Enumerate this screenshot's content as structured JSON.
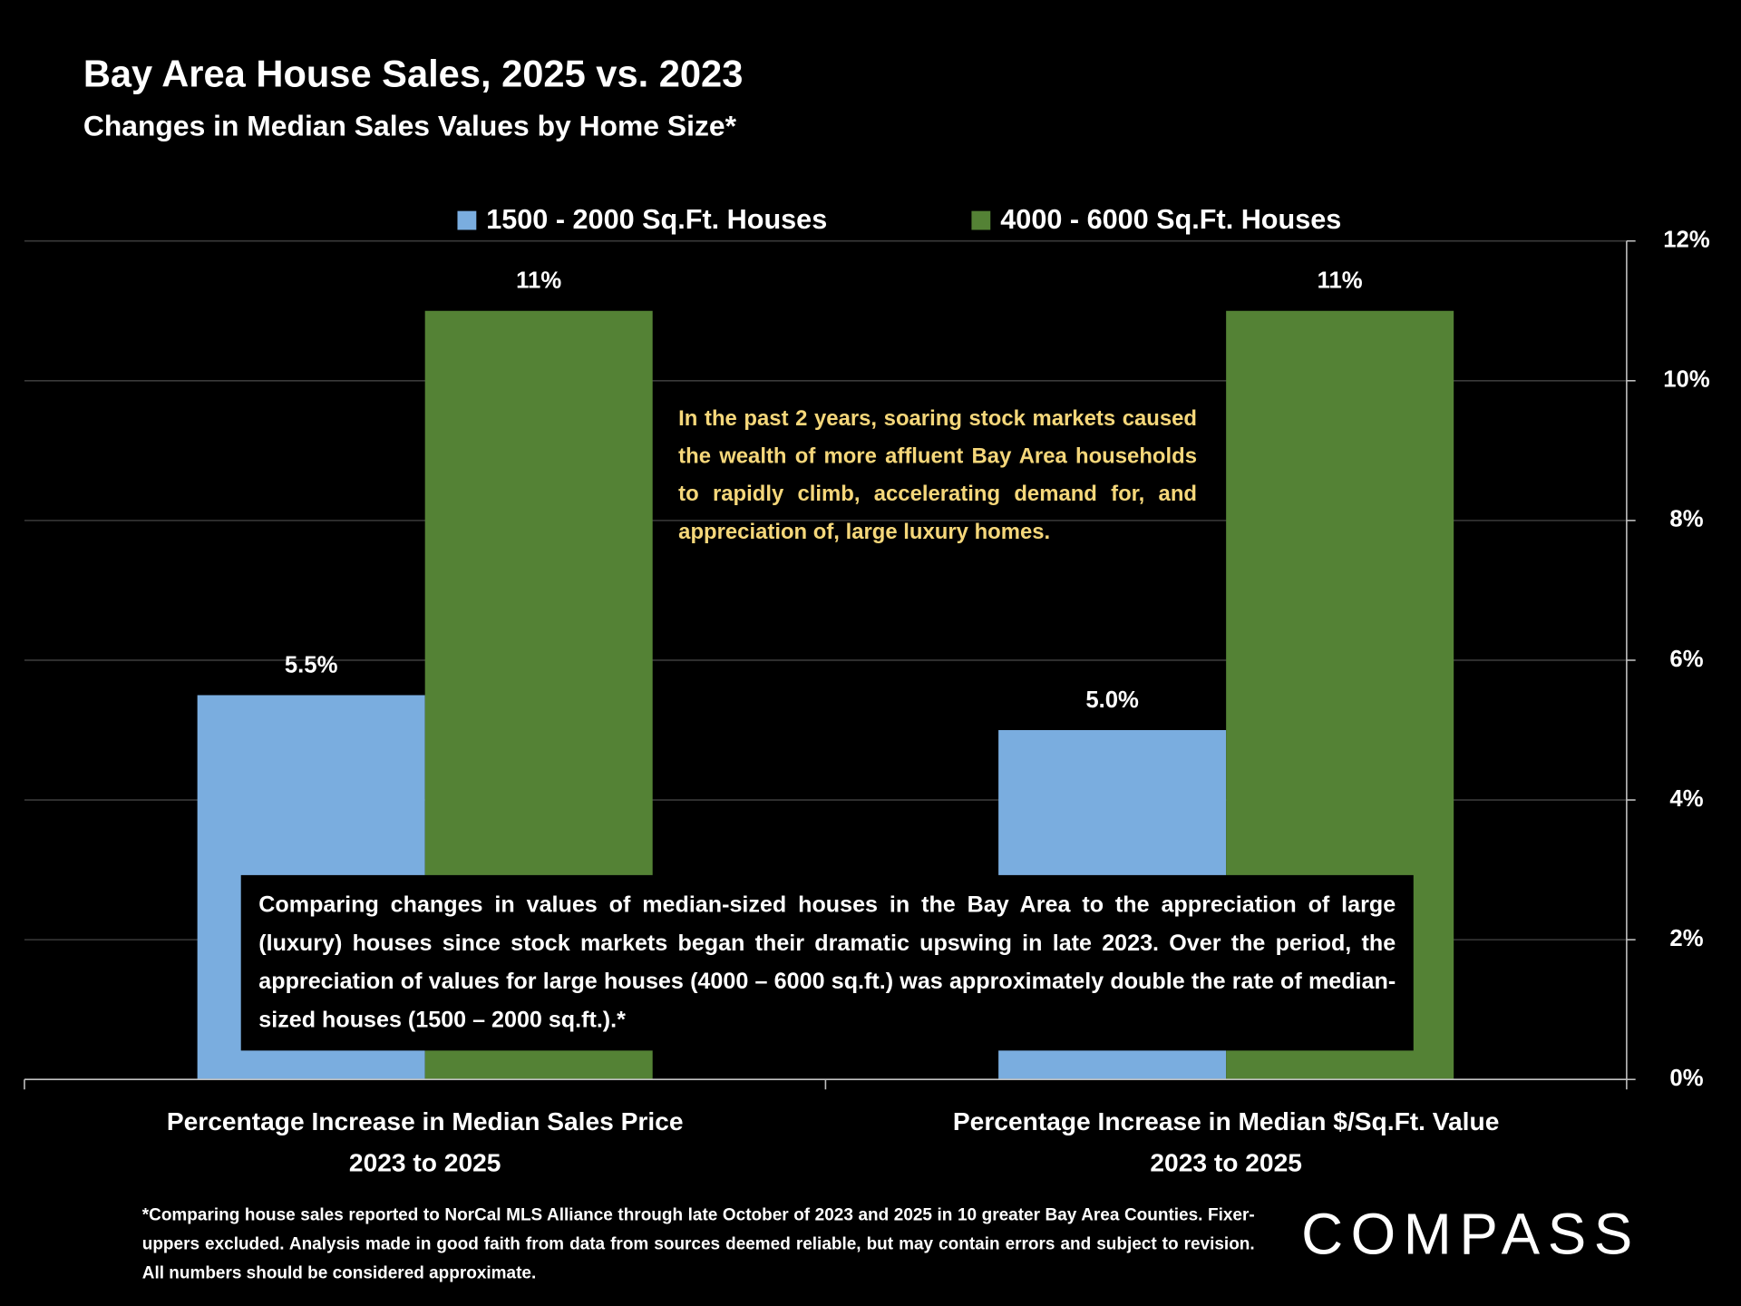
{
  "chart_data": {
    "type": "bar",
    "title": "Bay Area House Sales, 2025 vs. 2023",
    "subtitle": "Changes in Median Sales Values by Home Size*",
    "categories": [
      [
        "Percentage Increase in Median Sales Price",
        "2023 to 2025"
      ],
      [
        "Percentage Increase in Median $/Sq.Ft. Value",
        "2023 to 2025"
      ]
    ],
    "series": [
      {
        "name": "1500 - 2000 Sq.Ft. Houses",
        "color": "#7aaddf",
        "values": [
          5.5,
          5.0
        ],
        "value_labels": [
          "5.5%",
          "5.0%"
        ]
      },
      {
        "name": "4000 - 6000 Sq.Ft. Houses",
        "color": "#548235",
        "values": [
          11,
          11
        ],
        "value_labels": [
          "11%",
          "11%"
        ]
      }
    ],
    "ylim": [
      0,
      12
    ],
    "yticks": [
      {
        "value": 0,
        "label": "0%"
      },
      {
        "value": 2,
        "label": "2%"
      },
      {
        "value": 4,
        "label": "4%"
      },
      {
        "value": 6,
        "label": "6%"
      },
      {
        "value": 8,
        "label": "8%"
      },
      {
        "value": 10,
        "label": "10%"
      },
      {
        "value": 12,
        "label": "12%"
      }
    ],
    "y_axis_side": "right",
    "grid": true,
    "legend": "top",
    "annotations": [
      "In the past 2 years, soaring stock markets caused the wealth of more affluent Bay Area households to rapidly climb, accelerating demand for, and appreciation of, large luxury homes.",
      "Comparing changes in values of median-sized houses in the Bay Area to the appreciation of large (luxury) houses since stock markets began their dramatic upswing in late 2023. Over the period, the appreciation of values for large houses (4000 – 6000 sq.ft.) was approximately double the rate of median-sized houses (1500 – 2000 sq.ft.).*"
    ],
    "footnote": "*Comparing house sales reported to NorCal MLS Alliance through late October of 2023 and 2025 in 10 greater Bay Area Counties. Fixer-uppers excluded. Analysis made in good faith from data from sources deemed reliable, but may contain errors and subject to revision. All numbers should be considered approximate.",
    "logo": "COMPASS"
  }
}
